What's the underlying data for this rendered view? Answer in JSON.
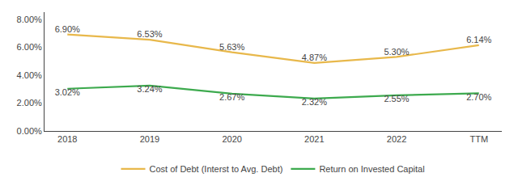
{
  "chart_data": {
    "type": "line",
    "categories": [
      "2018",
      "2019",
      "2020",
      "2021",
      "2022",
      "TTM"
    ],
    "series": [
      {
        "name": "Cost of Debt (Interst to Avg. Debt)",
        "color": "#E8B84B",
        "values": [
          6.9,
          6.53,
          5.63,
          4.87,
          5.3,
          6.14
        ],
        "value_labels": [
          "6.90%",
          "6.53%",
          "5.63%",
          "4.87%",
          "5.30%",
          "6.14%"
        ]
      },
      {
        "name": "Return on Invested Capital",
        "color": "#3DAA4E",
        "values": [
          3.02,
          3.24,
          2.67,
          2.32,
          2.55,
          2.7
        ],
        "value_labels": [
          "3.02%",
          "3.24%",
          "2.67%",
          "2.32%",
          "2.55%",
          "2.70%"
        ]
      }
    ],
    "ylim": [
      0.0,
      8.5
    ],
    "yticks": [
      {
        "value": 0.0,
        "label": "0.00%"
      },
      {
        "value": 2.0,
        "label": "2.00%"
      },
      {
        "value": 4.0,
        "label": "4.00%"
      },
      {
        "value": 6.0,
        "label": "6.00%"
      },
      {
        "value": 8.0,
        "label": "8.00%"
      }
    ],
    "grid": false,
    "data_labels": true,
    "legend": "bottom"
  }
}
